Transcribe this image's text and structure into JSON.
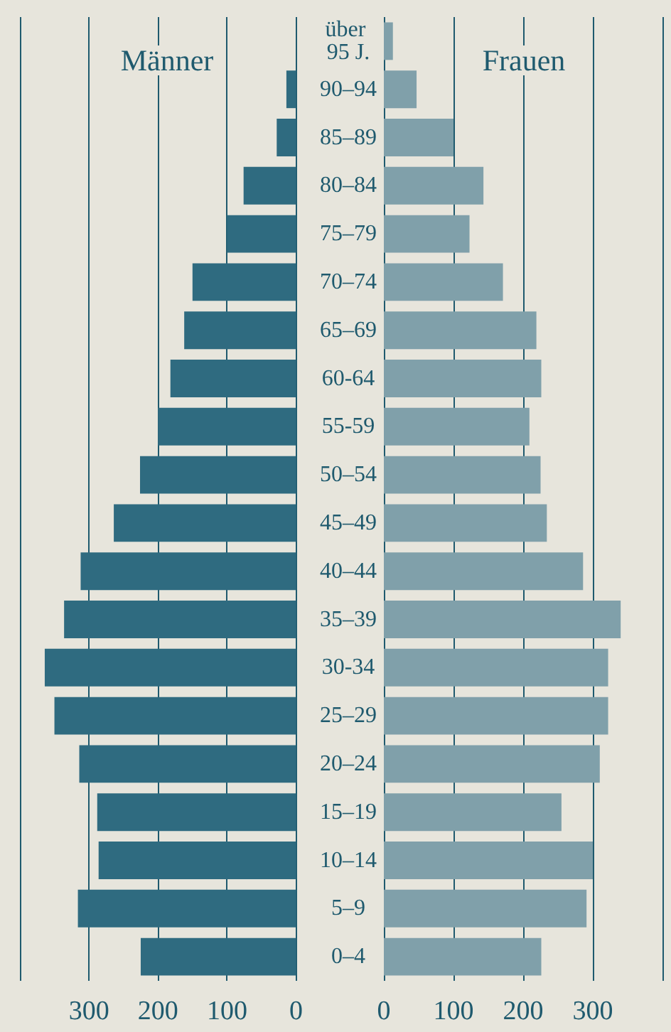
{
  "chart_data": [
    {
      "type": "bar",
      "orientation": "horizontal",
      "title": "Männer",
      "categories": [
        "über 95 J.",
        "90–94",
        "85–89",
        "80–84",
        "75–79",
        "70–74",
        "65–69",
        "60-64",
        "55-59",
        "50–54",
        "45–49",
        "40–44",
        "35–39",
        "30-34",
        "25–29",
        "20–24",
        "15–19",
        "10–14",
        "5–9",
        "0–4"
      ],
      "series": [
        {
          "color": "#2f6b80",
          "values": [
            null,
            14,
            28,
            76,
            100,
            150,
            162,
            182,
            200,
            226,
            264,
            312,
            336,
            364,
            350,
            314,
            288,
            286,
            316,
            225
          ]
        }
      ],
      "xlim": [
        400,
        0
      ],
      "xticks": [
        {
          "value": 400,
          "label": null
        },
        300,
        200,
        100,
        0
      ],
      "grid": "x",
      "tick_labels": "x"
    },
    {
      "type": "bar",
      "orientation": "horizontal",
      "title": "Frauen",
      "categories": [
        "über 95 J.",
        "90–94",
        "85–89",
        "80–84",
        "75–79",
        "70–74",
        "65–69",
        "60-64",
        "55-59",
        "50–54",
        "45–49",
        "40–44",
        "35–39",
        "30-34",
        "25–29",
        "20–24",
        "15–19",
        "10–14",
        "5–9",
        "0–4"
      ],
      "series": [
        {
          "color": "#80a0aa",
          "values": [
            13,
            47,
            100,
            143,
            123,
            171,
            219,
            226,
            209,
            225,
            234,
            286,
            340,
            322,
            322,
            310,
            255,
            300,
            291,
            226
          ]
        }
      ],
      "xlim": [
        0,
        400
      ],
      "xticks": [
        0,
        100,
        200,
        300,
        {
          "value": 400,
          "label": null
        }
      ],
      "grid": "x"
    }
  ]
}
